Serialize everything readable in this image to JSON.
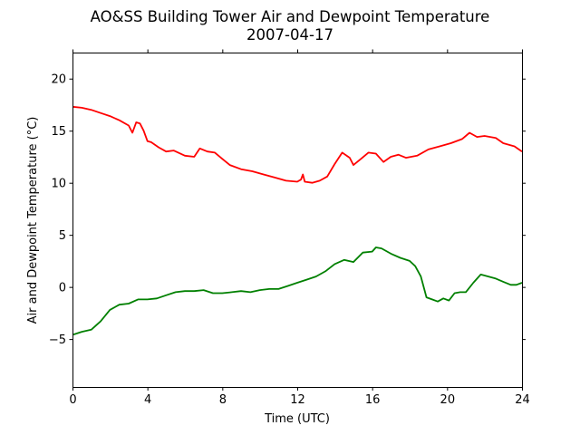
{
  "chart_data": {
    "type": "line",
    "title": "AO&SS Building Tower Air and Dewpoint Temperature",
    "subtitle": "2007-04-17",
    "xlabel": "Time (UTC)",
    "ylabel": "Air and Dewpoint Temperature (°C)",
    "xlim": [
      0,
      24
    ],
    "ylim": [
      -9.6,
      22.5
    ],
    "xticks": [
      0,
      4,
      8,
      12,
      16,
      20,
      24
    ],
    "yticks": [
      -5,
      0,
      5,
      10,
      15,
      20
    ],
    "grid": false,
    "legend": "none",
    "series": [
      {
        "color": "#ff0000",
        "x": [
          0,
          0.5,
          1.0,
          1.5,
          2.0,
          2.5,
          3.0,
          3.2,
          3.4,
          3.6,
          3.8,
          4.0,
          4.2,
          4.6,
          5.0,
          5.4,
          6.0,
          6.5,
          6.8,
          7.2,
          7.6,
          8.0,
          8.4,
          9.0,
          9.6,
          10.2,
          10.8,
          11.4,
          12.0,
          12.2,
          12.3,
          12.4,
          12.8,
          13.2,
          13.6,
          14.0,
          14.4,
          14.8,
          15.0,
          15.4,
          15.8,
          16.2,
          16.6,
          17.0,
          17.4,
          17.8,
          18.4,
          19.0,
          19.6,
          20.2,
          20.8,
          21.2,
          21.6,
          22.0,
          22.6,
          23.0,
          23.6,
          24.0
        ],
        "values": [
          17.3,
          17.2,
          17.0,
          16.7,
          16.4,
          16.0,
          15.5,
          14.8,
          15.8,
          15.7,
          15.0,
          14.0,
          13.9,
          13.4,
          13.0,
          13.1,
          12.6,
          12.5,
          13.3,
          13.0,
          12.9,
          12.3,
          11.7,
          11.3,
          11.1,
          10.8,
          10.5,
          10.2,
          10.1,
          10.3,
          10.8,
          10.1,
          10.0,
          10.2,
          10.6,
          11.8,
          12.9,
          12.4,
          11.7,
          12.3,
          12.9,
          12.8,
          12.0,
          12.5,
          12.7,
          12.4,
          12.6,
          13.2,
          13.5,
          13.8,
          14.2,
          14.8,
          14.4,
          14.5,
          14.3,
          13.8,
          13.5,
          13.0
        ]
      },
      {
        "color": "#008000",
        "x": [
          0,
          0.5,
          1.0,
          1.5,
          2.0,
          2.5,
          3.0,
          3.5,
          4.0,
          4.5,
          5.0,
          5.5,
          6.0,
          6.5,
          7.0,
          7.5,
          8.0,
          8.5,
          9.0,
          9.5,
          10.0,
          10.5,
          11.0,
          11.5,
          12.0,
          12.5,
          13.0,
          13.5,
          14.0,
          14.5,
          15.0,
          15.5,
          16.0,
          16.2,
          16.5,
          17.0,
          17.5,
          18.0,
          18.3,
          18.6,
          18.9,
          19.2,
          19.5,
          19.8,
          20.1,
          20.4,
          20.7,
          21.0,
          21.4,
          21.8,
          22.2,
          22.6,
          23.0,
          23.4,
          23.7,
          24.0
        ],
        "values": [
          -4.6,
          -4.3,
          -4.1,
          -3.3,
          -2.2,
          -1.7,
          -1.6,
          -1.2,
          -1.2,
          -1.1,
          -0.8,
          -0.5,
          -0.4,
          -0.4,
          -0.3,
          -0.6,
          -0.6,
          -0.5,
          -0.4,
          -0.5,
          -0.3,
          -0.2,
          -0.2,
          0.1,
          0.4,
          0.7,
          1.0,
          1.5,
          2.2,
          2.6,
          2.4,
          3.3,
          3.4,
          3.8,
          3.7,
          3.2,
          2.8,
          2.5,
          2.0,
          1.0,
          -1.0,
          -1.2,
          -1.4,
          -1.1,
          -1.3,
          -0.6,
          -0.5,
          -0.5,
          0.4,
          1.2,
          1.0,
          0.8,
          0.5,
          0.2,
          0.2,
          0.4
        ]
      }
    ]
  }
}
